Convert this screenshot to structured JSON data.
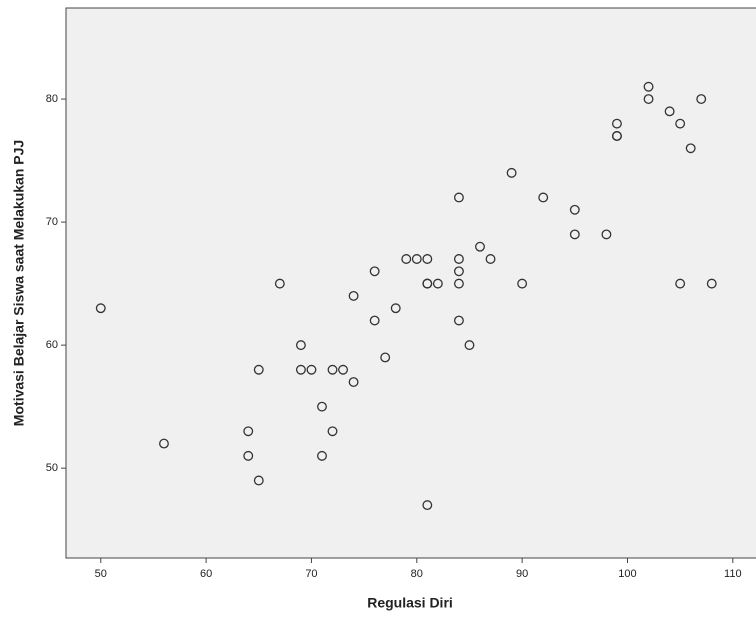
{
  "chart_data": {
    "type": "scatter",
    "xlabel": "Regulasi Diri",
    "ylabel": "Motivasi Belajar Siswa saat Melakukan PJJ",
    "x": [
      50,
      56,
      64,
      64,
      65,
      65,
      67,
      69,
      69,
      70,
      71,
      71,
      72,
      72,
      73,
      74,
      74,
      76,
      76,
      77,
      78,
      79,
      80,
      81,
      81,
      81,
      82,
      81,
      84,
      84,
      84,
      84,
      84,
      85,
      86,
      87,
      89,
      90,
      92,
      95,
      95,
      98,
      99,
      99,
      99,
      102,
      102,
      104,
      105,
      106,
      107,
      105,
      108
    ],
    "values": [
      63,
      52,
      53,
      51,
      58,
      49,
      65,
      60,
      58,
      58,
      55,
      51,
      58,
      53,
      58,
      64,
      57,
      66,
      62,
      59,
      63,
      67,
      67,
      67,
      65,
      65,
      65,
      47,
      72,
      67,
      66,
      65,
      62,
      60,
      68,
      67,
      74,
      65,
      72,
      71,
      69,
      69,
      78,
      77,
      77,
      81,
      80,
      79,
      78,
      76,
      80,
      65,
      65
    ],
    "color": "#333333",
    "xlim": [
      46.7,
      112.2
    ],
    "ylim": [
      42.7,
      87.4
    ],
    "xticks": [
      50,
      60,
      70,
      80,
      90,
      100,
      110
    ],
    "yticks": [
      50,
      60,
      70,
      80
    ]
  }
}
